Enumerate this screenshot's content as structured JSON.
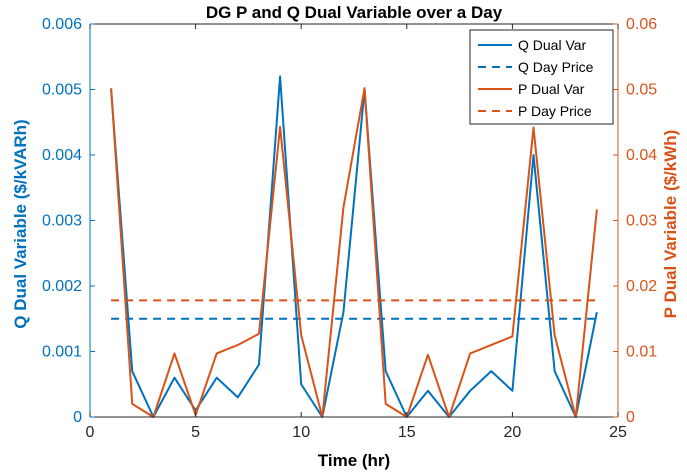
{
  "chart_data": {
    "type": "line",
    "title": "DG P and Q Dual Variable over a Day",
    "xlabel": "Time (hr)",
    "ylabel_left": "Q Dual Variable ($/kVARh)",
    "ylabel_right": "P Dual Variable ($/kWh)",
    "xlim": [
      0,
      25
    ],
    "ylim_left": [
      0,
      0.006
    ],
    "ylim_right": [
      0,
      0.06
    ],
    "x_ticks": [
      "0",
      "5",
      "10",
      "15",
      "20",
      "25"
    ],
    "y_left_ticks": [
      "0",
      "0.001",
      "0.002",
      "0.003",
      "0.004",
      "0.005",
      "0.006"
    ],
    "y_right_ticks": [
      "0",
      "0.01",
      "0.02",
      "0.03",
      "0.04",
      "0.05",
      "0.06"
    ],
    "grid": false,
    "legend_position": "top-right",
    "colors": {
      "q": "#0072BD",
      "p": "#D95319"
    },
    "x": [
      1,
      2,
      3,
      4,
      5,
      6,
      7,
      8,
      9,
      10,
      11,
      12,
      13,
      14,
      15,
      16,
      17,
      18,
      19,
      20,
      21,
      22,
      23,
      24
    ],
    "series": [
      {
        "name": "Q Dual Var",
        "axis": "left",
        "style": "solid",
        "values": [
          0.005,
          0.0007,
          0.0,
          0.0006,
          0.0001,
          0.0006,
          0.0003,
          0.0008,
          0.0052,
          0.0005,
          0.0,
          0.0016,
          0.005,
          0.0007,
          0.0,
          0.0004,
          0.0,
          0.0004,
          0.0007,
          0.0004,
          0.004,
          0.0007,
          0.0,
          0.0016
        ]
      },
      {
        "name": "Q Day Price",
        "axis": "left",
        "style": "dashed",
        "values": [
          0.0015,
          0.0015,
          0.0015,
          0.0015,
          0.0015,
          0.0015,
          0.0015,
          0.0015,
          0.0015,
          0.0015,
          0.0015,
          0.0015,
          0.0015,
          0.0015,
          0.0015,
          0.0015,
          0.0015,
          0.0015,
          0.0015,
          0.0015,
          0.0015,
          0.0015,
          0.0015,
          0.0015
        ]
      },
      {
        "name": "P Dual Var",
        "axis": "right",
        "style": "solid",
        "values": [
          0.0502,
          0.002,
          0.0,
          0.0097,
          0.0003,
          0.0097,
          0.011,
          0.0127,
          0.0443,
          0.0125,
          0.0,
          0.032,
          0.0502,
          0.002,
          0.0,
          0.0095,
          0.0,
          0.0097,
          0.011,
          0.0123,
          0.0442,
          0.0125,
          0.0,
          0.0317
        ]
      },
      {
        "name": "P Day Price",
        "axis": "right",
        "style": "dashed",
        "values": [
          0.0178,
          0.0178,
          0.0178,
          0.0178,
          0.0178,
          0.0178,
          0.0178,
          0.0178,
          0.0178,
          0.0178,
          0.0178,
          0.0178,
          0.0178,
          0.0178,
          0.0178,
          0.0178,
          0.0178,
          0.0178,
          0.0178,
          0.0178,
          0.0178,
          0.0178,
          0.0178,
          0.0178
        ]
      }
    ]
  }
}
